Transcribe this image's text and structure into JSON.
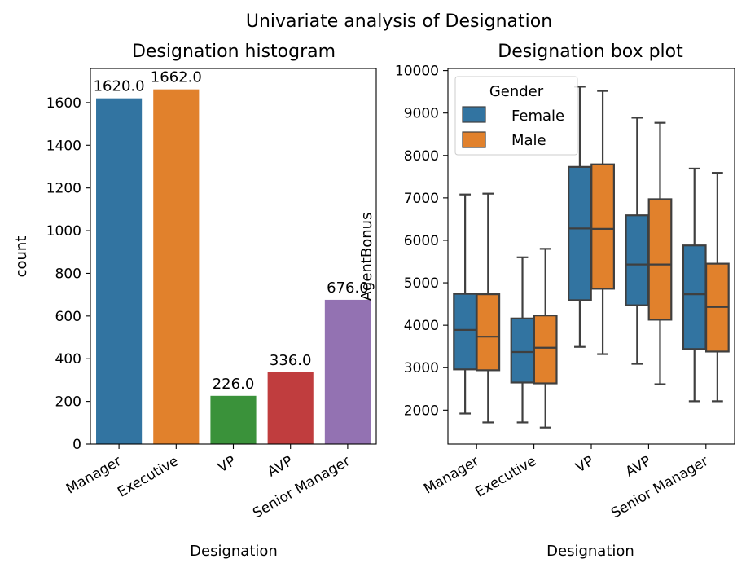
{
  "suptitle": "Univariate analysis of Designation",
  "chart_data": [
    {
      "type": "bar",
      "title": "Designation histogram",
      "xlabel": "Designation",
      "ylabel": "count",
      "categories": [
        "Manager",
        "Executive",
        "VP",
        "AVP",
        "Senior Manager"
      ],
      "values": [
        1620,
        1662,
        226,
        336,
        676
      ],
      "data_labels": [
        "1620.0",
        "1662.0",
        "226.0",
        "336.0",
        "676.0"
      ],
      "colors": [
        "#3274a1",
        "#e1812c",
        "#3a923a",
        "#c03d3e",
        "#9372b2"
      ],
      "ylim": [
        0,
        1760
      ],
      "yticks": [
        0,
        200,
        400,
        600,
        800,
        1000,
        1200,
        1400,
        1600
      ]
    },
    {
      "type": "box",
      "title": "Designation box plot",
      "xlabel": "Designation",
      "ylabel": "AgentBonus",
      "categories": [
        "Manager",
        "Executive",
        "VP",
        "AVP",
        "Senior Manager"
      ],
      "ylim": [
        1200,
        10050
      ],
      "yticks": [
        2000,
        3000,
        4000,
        5000,
        6000,
        7000,
        8000,
        9000,
        10000
      ],
      "legend": {
        "title": "Gender",
        "position": "top-left"
      },
      "series": [
        {
          "name": "Female",
          "color": "#3274a1",
          "boxes": [
            {
              "whislo": 1920,
              "q1": 2960,
              "med": 3890,
              "q3": 4740,
              "whishi": 7080
            },
            {
              "whislo": 1710,
              "q1": 2650,
              "med": 3370,
              "q3": 4160,
              "whishi": 5600
            },
            {
              "whislo": 3490,
              "q1": 4590,
              "med": 6280,
              "q3": 7730,
              "whishi": 9620
            },
            {
              "whislo": 3090,
              "q1": 4470,
              "med": 5430,
              "q3": 6590,
              "whishi": 8890
            },
            {
              "whislo": 2210,
              "q1": 3440,
              "med": 4730,
              "q3": 5880,
              "whishi": 7690
            }
          ]
        },
        {
          "name": "Male",
          "color": "#e1812c",
          "boxes": [
            {
              "whislo": 1710,
              "q1": 2940,
              "med": 3730,
              "q3": 4730,
              "whishi": 7100
            },
            {
              "whislo": 1590,
              "q1": 2630,
              "med": 3470,
              "q3": 4230,
              "whishi": 5800
            },
            {
              "whislo": 3320,
              "q1": 4860,
              "med": 6270,
              "q3": 7790,
              "whishi": 9520
            },
            {
              "whislo": 2610,
              "q1": 4130,
              "med": 5430,
              "q3": 6970,
              "whishi": 8770
            },
            {
              "whislo": 2210,
              "q1": 3380,
              "med": 4430,
              "q3": 5450,
              "whishi": 7590
            }
          ]
        }
      ]
    }
  ]
}
